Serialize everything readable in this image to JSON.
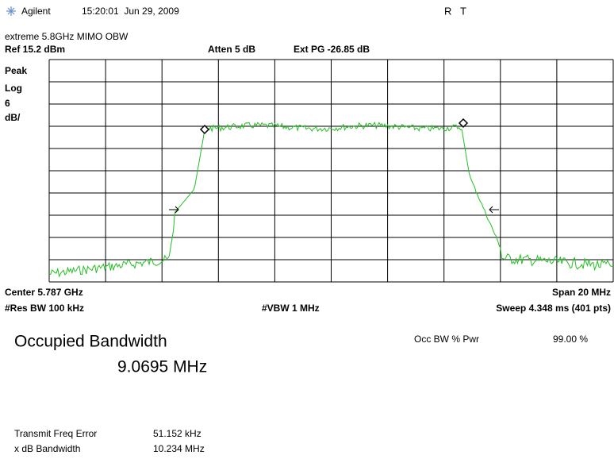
{
  "header": {
    "brand": "Agilent",
    "datetime": "15:20:01  Jun 29, 2009",
    "status": "R   T"
  },
  "screen": {
    "name": "extreme 5.8GHz MIMO OBW",
    "ref": "Ref 15.2 dBm",
    "atten": "Atten 5 dB",
    "ext_pg": "Ext PG -26.85 dB",
    "scale_labels": [
      "Peak",
      "Log",
      "6",
      "dB/"
    ],
    "center": "Center 5.787 GHz",
    "span": "Span 20 MHz",
    "res_bw": "#Res BW 100 kHz",
    "vbw": "#VBW 1 MHz",
    "sweep": "Sweep 4.348 ms (401 pts)"
  },
  "results": {
    "title": "Occupied Bandwidth",
    "obw": "9.0695 MHz",
    "pwr_label": "Occ BW % Pwr",
    "pwr_value": "99.00 %",
    "rows": [
      [
        "Transmit Freq Error",
        "51.152 kHz"
      ],
      [
        "x dB Bandwidth",
        "10.234 MHz"
      ]
    ]
  }
}
